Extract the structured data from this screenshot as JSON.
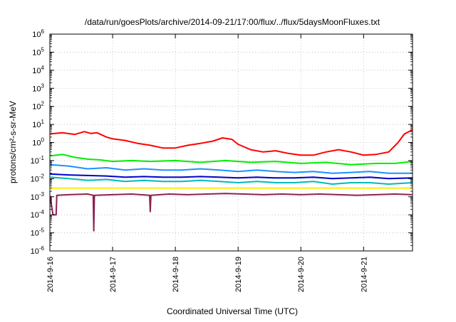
{
  "chart_data": {
    "type": "line",
    "title": "/data/run/goesPlots/archive/2014-09-21/17:00/flux/../flux/5daysMoonFluxes.txt",
    "xlabel": "Coordinated Universal Time (UTC)",
    "ylabel": "protons/cm²-s-sr-MeV",
    "y_scale": "log",
    "ylim_exponents": [
      -6,
      6
    ],
    "y_tick_exponents": [
      6,
      5,
      4,
      3,
      2,
      1,
      0,
      -1,
      -2,
      -3,
      -4,
      -5,
      -6
    ],
    "y_tick_base": "10",
    "x_range_days": [
      0,
      5.78
    ],
    "x_ticks": [
      {
        "day": 0,
        "label": "2014-9-16"
      },
      {
        "day": 1,
        "label": "2014-9-17"
      },
      {
        "day": 2,
        "label": "2014-9-18"
      },
      {
        "day": 3,
        "label": "2014-9-19"
      },
      {
        "day": 4,
        "label": "2014-9-20"
      },
      {
        "day": 5,
        "label": "2014-9-21"
      }
    ],
    "legend": "none",
    "series": [
      {
        "color": "#ff0000",
        "x": [
          0,
          0.2,
          0.4,
          0.55,
          0.65,
          0.75,
          0.9,
          1.0,
          1.2,
          1.4,
          1.6,
          1.8,
          2.0,
          2.2,
          2.4,
          2.6,
          2.75,
          2.9,
          3.0,
          3.2,
          3.4,
          3.6,
          3.8,
          4.0,
          4.2,
          4.4,
          4.6,
          4.8,
          5.0,
          5.2,
          5.4,
          5.55,
          5.65,
          5.78
        ],
        "values": [
          3.0,
          3.5,
          2.8,
          4.0,
          3.2,
          3.5,
          2.0,
          1.6,
          1.3,
          0.9,
          0.7,
          0.5,
          0.5,
          0.7,
          0.9,
          1.2,
          1.8,
          1.5,
          0.8,
          0.4,
          0.3,
          0.35,
          0.25,
          0.2,
          0.2,
          0.3,
          0.4,
          0.3,
          0.2,
          0.22,
          0.3,
          1.0,
          3.0,
          5.0
        ]
      },
      {
        "color": "#00ee00",
        "x": [
          0,
          0.2,
          0.4,
          0.6,
          0.8,
          1.0,
          1.3,
          1.6,
          2.0,
          2.4,
          2.8,
          3.2,
          3.6,
          4.0,
          4.4,
          4.8,
          5.2,
          5.5,
          5.78
        ],
        "values": [
          0.18,
          0.22,
          0.15,
          0.12,
          0.11,
          0.09,
          0.1,
          0.09,
          0.1,
          0.08,
          0.1,
          0.08,
          0.09,
          0.07,
          0.08,
          0.06,
          0.07,
          0.07,
          0.09
        ]
      },
      {
        "color": "#1e90ff",
        "x": [
          0,
          0.3,
          0.6,
          0.9,
          1.2,
          1.5,
          1.8,
          2.1,
          2.4,
          2.7,
          3.0,
          3.3,
          3.6,
          3.9,
          4.2,
          4.5,
          4.8,
          5.1,
          5.4,
          5.78
        ],
        "values": [
          0.06,
          0.05,
          0.035,
          0.04,
          0.03,
          0.035,
          0.03,
          0.03,
          0.035,
          0.03,
          0.025,
          0.03,
          0.025,
          0.022,
          0.025,
          0.02,
          0.022,
          0.025,
          0.02,
          0.02
        ]
      },
      {
        "color": "#0000cc",
        "x": [
          0,
          0.3,
          0.6,
          0.9,
          1.2,
          1.5,
          1.8,
          2.1,
          2.4,
          2.7,
          3.0,
          3.3,
          3.6,
          3.9,
          4.2,
          4.5,
          4.8,
          5.1,
          5.4,
          5.78
        ],
        "values": [
          0.018,
          0.016,
          0.015,
          0.014,
          0.012,
          0.013,
          0.012,
          0.012,
          0.013,
          0.012,
          0.011,
          0.012,
          0.011,
          0.011,
          0.012,
          0.01,
          0.011,
          0.012,
          0.01,
          0.011
        ]
      },
      {
        "color": "#00bbbb",
        "x": [
          0,
          0.3,
          0.6,
          0.9,
          1.2,
          1.5,
          1.8,
          2.1,
          2.4,
          2.7,
          3.0,
          3.3,
          3.6,
          3.9,
          4.2,
          4.5,
          4.8,
          5.1,
          5.4,
          5.78
        ],
        "values": [
          0.012,
          0.01,
          0.008,
          0.009,
          0.007,
          0.008,
          0.007,
          0.007,
          0.008,
          0.007,
          0.006,
          0.007,
          0.006,
          0.006,
          0.007,
          0.005,
          0.006,
          0.006,
          0.005,
          0.006
        ]
      },
      {
        "color": "#ffee00",
        "x": [
          0,
          1,
          2,
          3,
          4,
          5,
          5.78
        ],
        "values": [
          0.003,
          0.003,
          0.003,
          0.003,
          0.003,
          0.003,
          0.003
        ]
      },
      {
        "color": "#8b2252",
        "x": [
          0,
          0.05,
          0.06,
          0.1,
          0.11,
          0.3,
          0.6,
          0.69,
          0.7,
          0.71,
          1.0,
          1.3,
          1.59,
          1.6,
          1.61,
          1.9,
          2.2,
          2.5,
          2.8,
          3.1,
          3.4,
          3.7,
          4.0,
          4.3,
          4.6,
          4.9,
          5.2,
          5.5,
          5.78
        ],
        "values": [
          0.0012,
          0.0001,
          0.0001,
          0.0001,
          0.0012,
          0.0013,
          0.0014,
          0.0012,
          1.3e-05,
          0.0012,
          0.0013,
          0.0014,
          0.0012,
          0.00015,
          0.0012,
          0.0014,
          0.0013,
          0.0014,
          0.0015,
          0.0014,
          0.0013,
          0.0014,
          0.0013,
          0.0014,
          0.0013,
          0.0012,
          0.0013,
          0.0014,
          0.0013
        ]
      }
    ]
  }
}
